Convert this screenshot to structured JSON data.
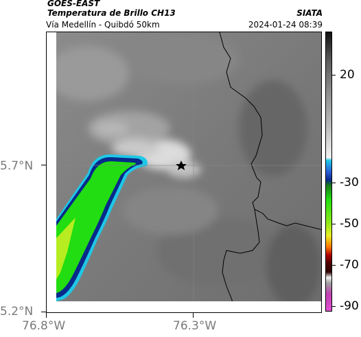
{
  "header": {
    "satellite": "GOES-EAST",
    "product": "Temperatura de Brillo CH13",
    "subtitle": "Vía Medellín - Quibdó 50km",
    "organization": "SIATA",
    "datetime": "2024-01-24 08:39"
  },
  "map": {
    "lat_labels": [
      "5.7°N",
      "5.2°N"
    ],
    "lon_labels": [
      "76.8°W",
      "76.3°W"
    ],
    "marker": "star-marker"
  },
  "colorbar": {
    "labels": [
      "20",
      "-30",
      "-50",
      "-70",
      "-90"
    ],
    "colors": {
      "warm_top": "#111111",
      "mid_gray": "#bdbdbd",
      "cold_white": "#f2f2f2",
      "cyan": "#1ec8e6",
      "blue": "#082a8a",
      "green": "#22dd11",
      "yellow": "#e8ee22",
      "orange": "#ff7a00",
      "red": "#b00000",
      "magenta": "#c040b0"
    }
  }
}
